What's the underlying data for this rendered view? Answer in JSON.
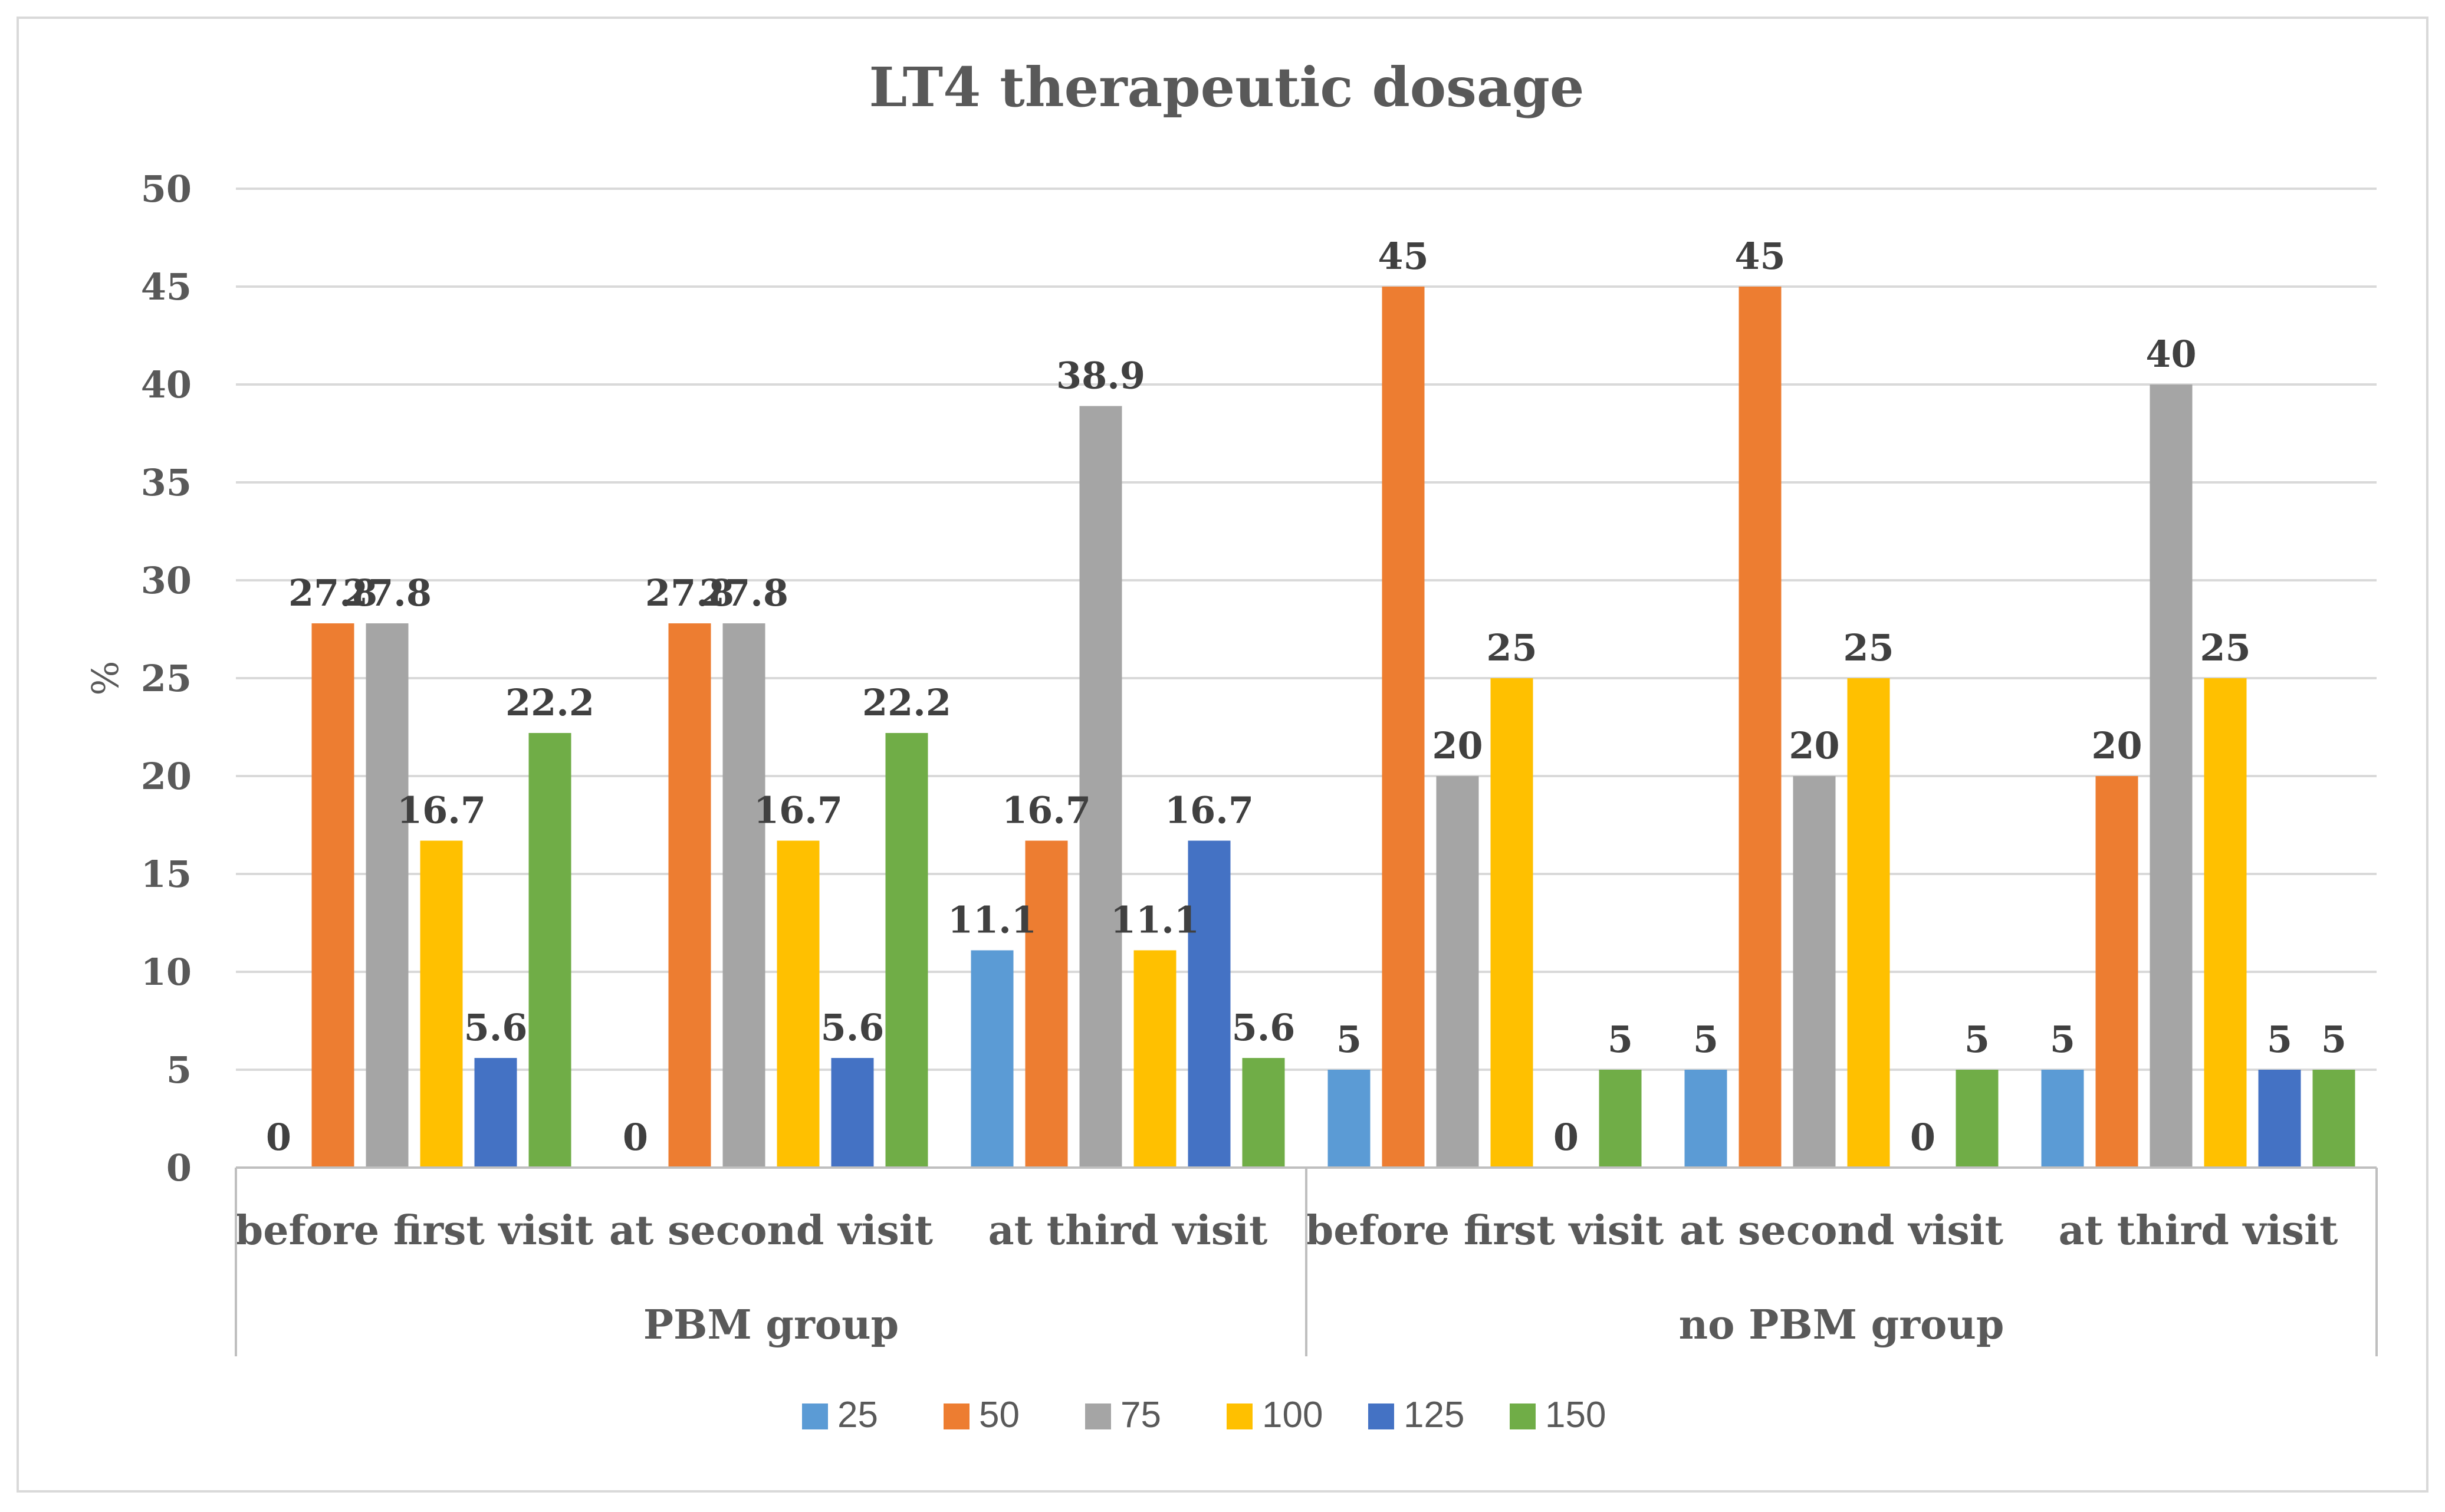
{
  "chart_data": {
    "type": "bar",
    "title": "LT4 therapeutic dosage",
    "xlabel": "",
    "ylabel": "%",
    "ylim": [
      0,
      50
    ],
    "yticks": [
      "0",
      "5",
      "10",
      "15",
      "20",
      "25",
      "30",
      "35",
      "40",
      "45",
      "50"
    ],
    "grid": true,
    "legend_position": "bottom",
    "groups": [
      {
        "label": "PBM group",
        "categories": [
          "before first visit",
          "at second visit",
          "at third visit"
        ]
      },
      {
        "label": "no PBM group",
        "categories": [
          "before first visit",
          "at second visit",
          "at third visit"
        ]
      }
    ],
    "categories": [
      "before first visit",
      "at second visit",
      "at third visit",
      "before first visit",
      "at second visit",
      "at third visit"
    ],
    "series": [
      {
        "name": "25",
        "color": "#5B9BD5",
        "values": [
          0,
          0,
          11.1,
          5,
          5,
          5
        ],
        "labels": [
          "0",
          "0",
          "11.1",
          "5",
          "5",
          "5"
        ]
      },
      {
        "name": "50",
        "color": "#ED7D31",
        "values": [
          27.8,
          27.8,
          16.7,
          45,
          45,
          20
        ],
        "labels": [
          "27.8",
          "27.8",
          "16.7",
          "45",
          "45",
          "20"
        ]
      },
      {
        "name": "75",
        "color": "#A5A5A5",
        "values": [
          27.8,
          27.8,
          38.9,
          20,
          20,
          40
        ],
        "labels": [
          "27.8",
          "27.8",
          "38.9",
          "20",
          "20",
          "40"
        ]
      },
      {
        "name": "100",
        "color": "#FFC000",
        "values": [
          16.7,
          16.7,
          11.1,
          25,
          25,
          25
        ],
        "labels": [
          "16.7",
          "16.7",
          "11.1",
          "25",
          "25",
          "25"
        ]
      },
      {
        "name": "125",
        "color": "#4472C4",
        "values": [
          5.6,
          5.6,
          16.7,
          0,
          0,
          5
        ],
        "labels": [
          "5.6",
          "5.6",
          "16.7",
          "0",
          "0",
          "5"
        ]
      },
      {
        "name": "150",
        "color": "#70AD47",
        "values": [
          22.2,
          22.2,
          5.6,
          5,
          5,
          5
        ],
        "labels": [
          "22.2",
          "22.2",
          "5.6",
          "5",
          "5",
          "5"
        ]
      }
    ]
  }
}
